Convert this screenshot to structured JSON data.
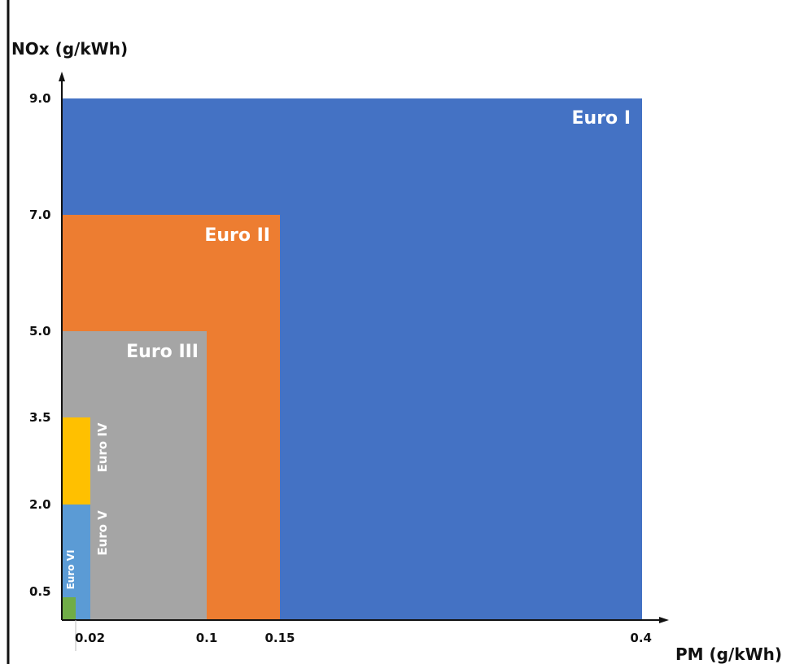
{
  "chart_data": {
    "type": "area",
    "title": "",
    "xlabel": "PM (g/kWh)",
    "ylabel": "NOx (g/kWh)",
    "x_ticks": [
      "0.02",
      "0.1",
      "0.15",
      "0.4"
    ],
    "y_ticks": [
      "0.5",
      "2.0",
      "3.5",
      "5.0",
      "7.0",
      "9.0"
    ],
    "regions": [
      {
        "name": "Euro I",
        "pm": 0.4,
        "nox": 9.0,
        "color": "#4472c4"
      },
      {
        "name": "Euro II",
        "pm": 0.15,
        "nox": 7.0,
        "color": "#ed7d31"
      },
      {
        "name": "Euro III",
        "pm": 0.1,
        "nox": 5.0,
        "color": "#a5a5a5"
      },
      {
        "name": "Euro IV",
        "pm": 0.02,
        "nox": 3.5,
        "color": "#ffc000"
      },
      {
        "name": "Euro V",
        "pm": 0.02,
        "nox": 2.0,
        "color": "#5b9bd5"
      },
      {
        "name": "Euro VI",
        "pm": 0.01,
        "nox": 0.4,
        "color": "#70ad47"
      }
    ],
    "grid": false
  }
}
